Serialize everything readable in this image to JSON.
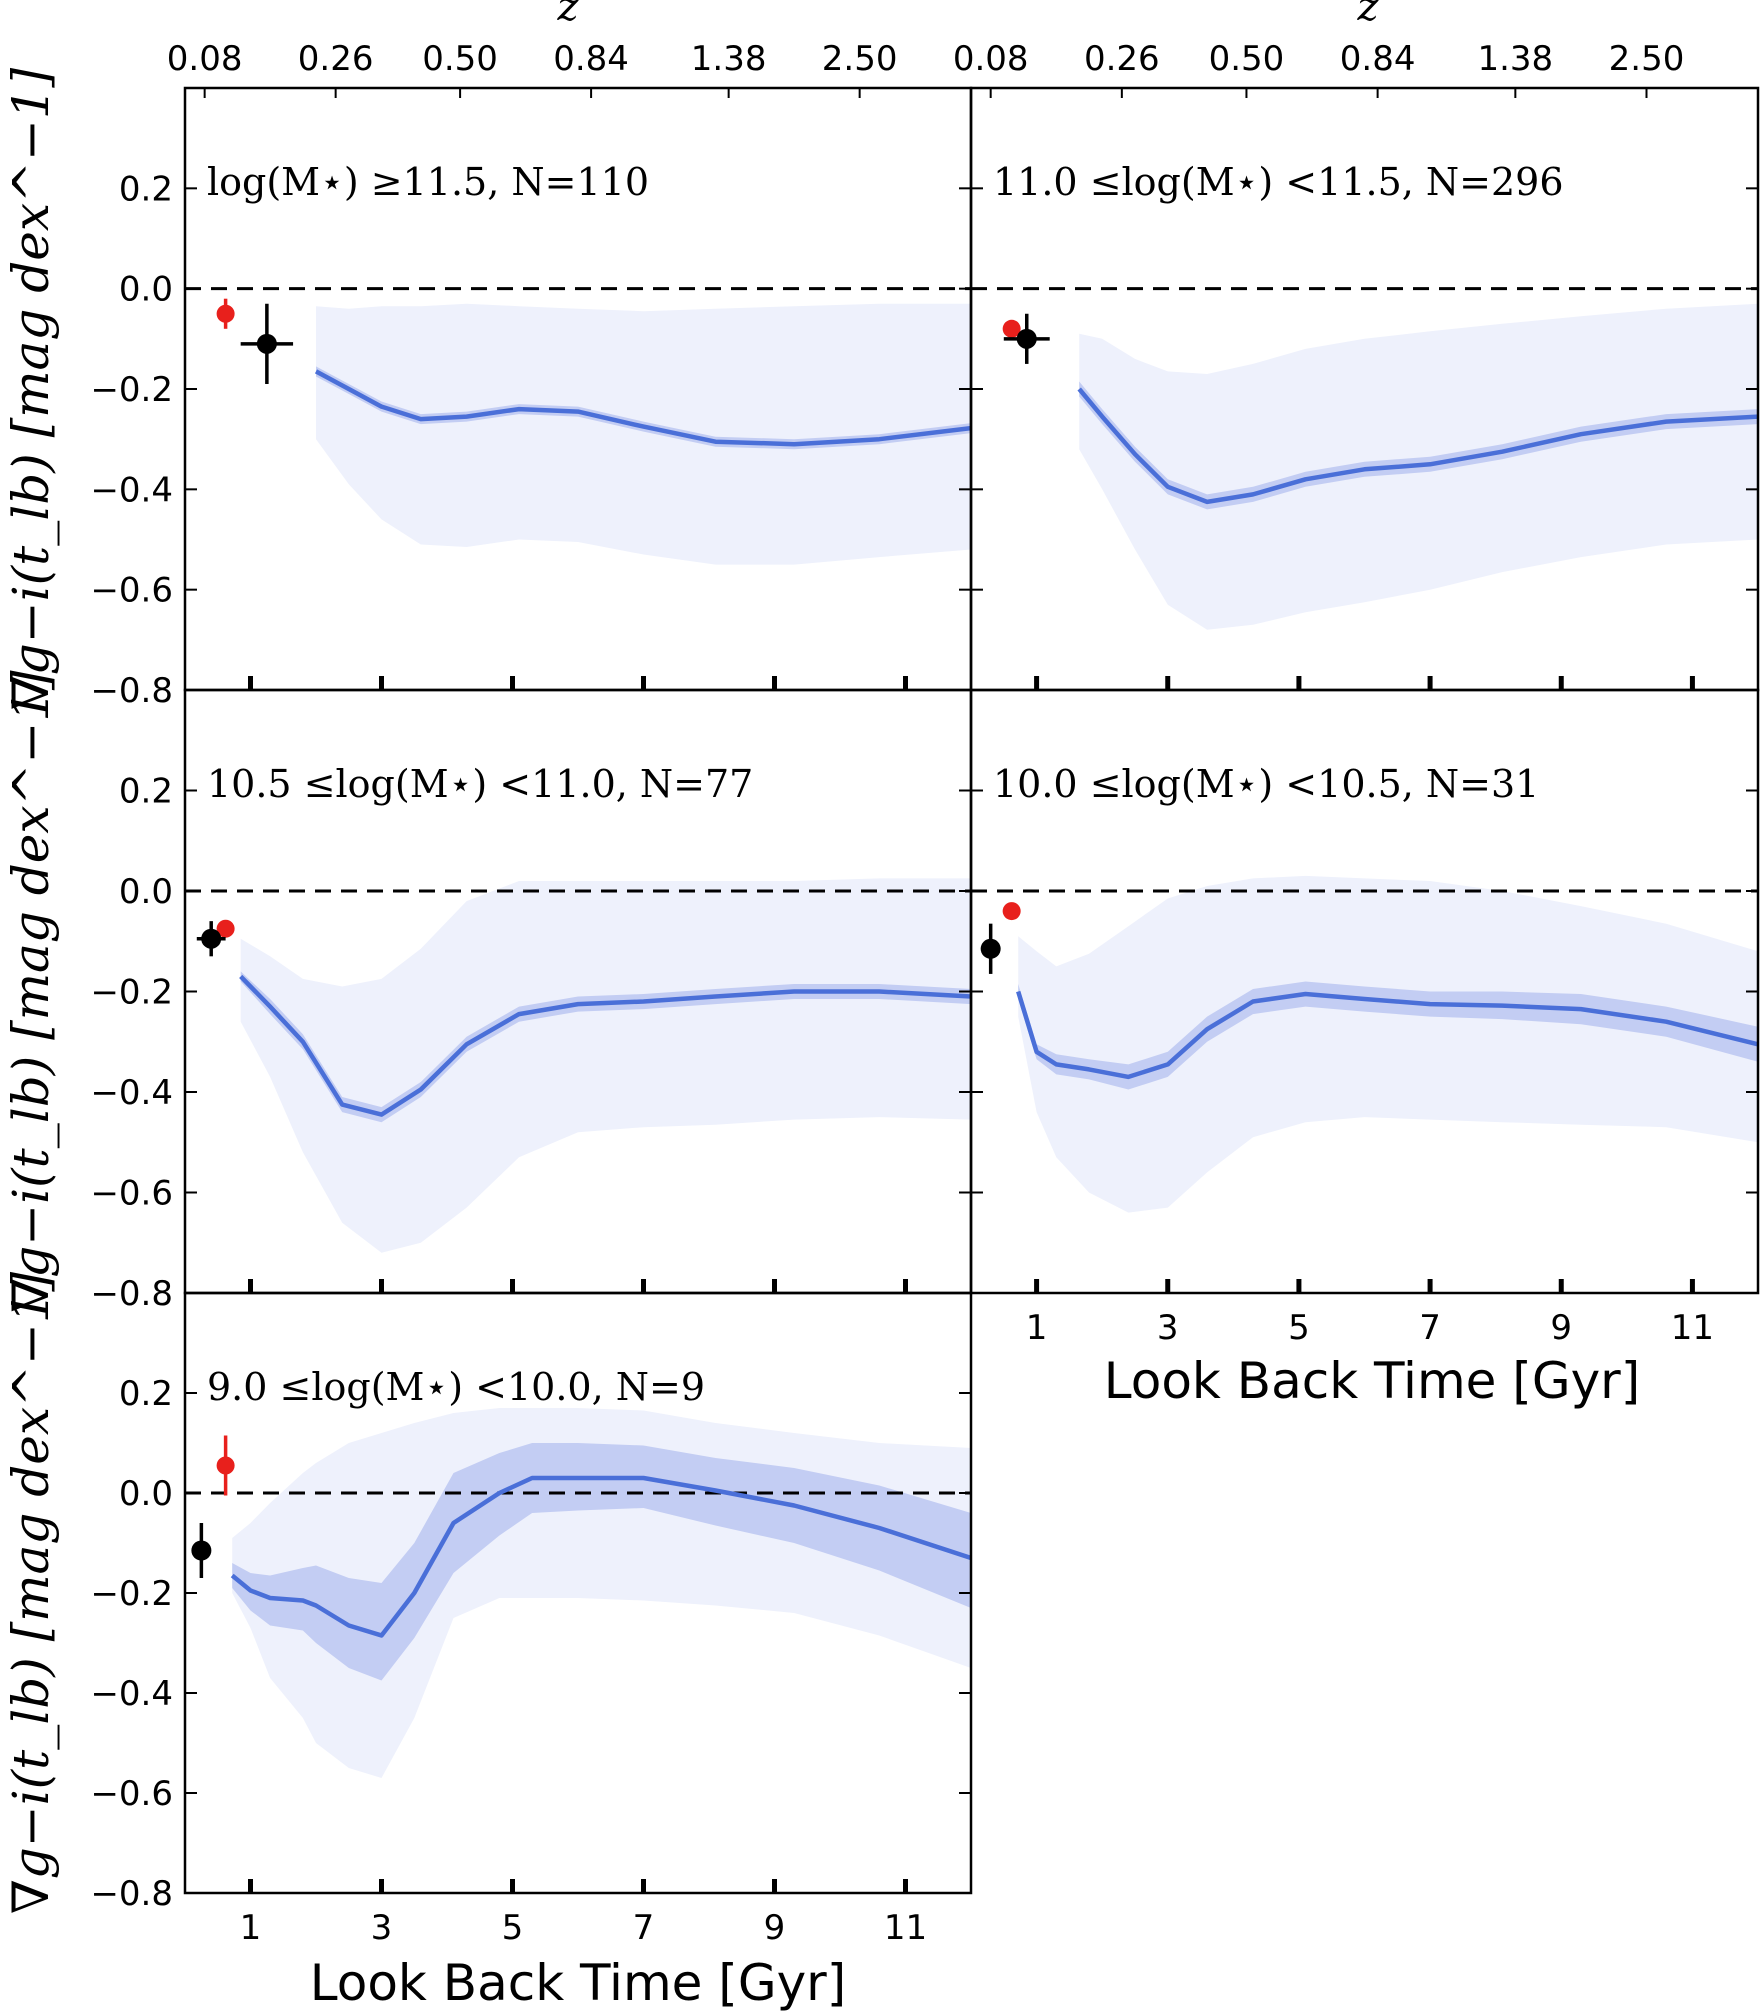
{
  "chart_data": {
    "type": "line",
    "xlabel": "Look Back Time [Gyr]",
    "ylabel": "∇g−i(t_lb) [mag dex^−1]",
    "top_axis_label": "z",
    "xlim": [
      0,
      12
    ],
    "ylim": [
      -0.8,
      0.4
    ],
    "x_ticks": [
      1,
      3,
      5,
      7,
      9,
      11
    ],
    "y_ticks": [
      0.2,
      0.0,
      -0.2,
      -0.4,
      -0.6,
      -0.8
    ],
    "y_tick_labels": [
      "0.2",
      "0.0",
      "−0.2",
      "−0.4",
      "−0.6",
      "−0.8"
    ],
    "z_tick_labels": [
      "0.08",
      "0.26",
      "0.50",
      "0.84",
      "1.38",
      "2.50"
    ],
    "reference_line": 0.0,
    "colors": {
      "line": "#4a6fd8",
      "band_inner": "#c3cdf3",
      "band_outer": "#eef1fc",
      "point_red": "#e8201c",
      "point_black": "#000000"
    },
    "panels": [
      {
        "label": "log(M⋆) ≥11.5, N=110",
        "x": [
          2.0,
          2.5,
          3.0,
          3.6,
          4.3,
          5.1,
          6.0,
          7.0,
          8.1,
          9.3,
          10.6,
          12.0
        ],
        "y": [
          -0.165,
          -0.2,
          -0.235,
          -0.26,
          -0.255,
          -0.24,
          -0.245,
          -0.275,
          -0.305,
          -0.31,
          -0.3,
          -0.278
        ],
        "inner_lo": [
          -0.175,
          -0.21,
          -0.245,
          -0.27,
          -0.265,
          -0.25,
          -0.255,
          -0.285,
          -0.315,
          -0.32,
          -0.31,
          -0.288
        ],
        "inner_hi": [
          -0.155,
          -0.19,
          -0.225,
          -0.25,
          -0.245,
          -0.23,
          -0.235,
          -0.265,
          -0.295,
          -0.3,
          -0.29,
          -0.268
        ],
        "outer_lo": [
          -0.3,
          -0.39,
          -0.46,
          -0.51,
          -0.515,
          -0.5,
          -0.505,
          -0.53,
          -0.55,
          -0.55,
          -0.535,
          -0.52
        ],
        "outer_hi": [
          -0.035,
          -0.04,
          -0.035,
          -0.035,
          -0.03,
          -0.035,
          -0.04,
          -0.045,
          -0.04,
          -0.035,
          -0.03,
          -0.03
        ],
        "red_point": {
          "x": 0.62,
          "y": -0.05,
          "yerr": 0.03
        },
        "black_point": {
          "x": 1.25,
          "y": -0.11,
          "yerr": 0.08,
          "xerr": 0.4
        }
      },
      {
        "label": "11.0 ≤log(M⋆) <11.5, N=296",
        "x": [
          1.65,
          2.0,
          2.5,
          3.0,
          3.6,
          4.3,
          5.1,
          6.0,
          7.0,
          8.1,
          9.3,
          10.6,
          12.0
        ],
        "y": [
          -0.2,
          -0.255,
          -0.33,
          -0.395,
          -0.425,
          -0.41,
          -0.38,
          -0.36,
          -0.35,
          -0.325,
          -0.29,
          -0.265,
          -0.255
        ],
        "inner_lo": [
          -0.215,
          -0.27,
          -0.345,
          -0.41,
          -0.44,
          -0.425,
          -0.395,
          -0.375,
          -0.365,
          -0.34,
          -0.305,
          -0.28,
          -0.27
        ],
        "inner_hi": [
          -0.185,
          -0.24,
          -0.315,
          -0.38,
          -0.41,
          -0.395,
          -0.365,
          -0.345,
          -0.335,
          -0.31,
          -0.275,
          -0.25,
          -0.24
        ],
        "outer_lo": [
          -0.32,
          -0.4,
          -0.52,
          -0.63,
          -0.68,
          -0.67,
          -0.645,
          -0.625,
          -0.6,
          -0.565,
          -0.535,
          -0.51,
          -0.5
        ],
        "outer_hi": [
          -0.09,
          -0.1,
          -0.14,
          -0.165,
          -0.17,
          -0.15,
          -0.12,
          -0.1,
          -0.085,
          -0.07,
          -0.055,
          -0.04,
          -0.03
        ],
        "red_point": {
          "x": 0.62,
          "y": -0.08,
          "yerr": 0.0
        },
        "black_point": {
          "x": 0.85,
          "y": -0.1,
          "yerr": 0.05,
          "xerr": 0.35
        }
      },
      {
        "label": "10.5 ≤log(M⋆) <11.0, N=77",
        "x": [
          0.85,
          1.3,
          1.8,
          2.4,
          3.0,
          3.6,
          4.3,
          5.1,
          6.0,
          7.0,
          8.1,
          9.3,
          10.6,
          12.0
        ],
        "y": [
          -0.17,
          -0.23,
          -0.3,
          -0.425,
          -0.445,
          -0.395,
          -0.305,
          -0.245,
          -0.225,
          -0.22,
          -0.21,
          -0.2,
          -0.2,
          -0.21
        ],
        "inner_lo": [
          -0.18,
          -0.245,
          -0.315,
          -0.44,
          -0.46,
          -0.41,
          -0.32,
          -0.26,
          -0.24,
          -0.235,
          -0.225,
          -0.215,
          -0.215,
          -0.225
        ],
        "inner_hi": [
          -0.16,
          -0.215,
          -0.285,
          -0.41,
          -0.43,
          -0.38,
          -0.29,
          -0.23,
          -0.21,
          -0.205,
          -0.195,
          -0.185,
          -0.185,
          -0.195
        ],
        "outer_lo": [
          -0.26,
          -0.37,
          -0.52,
          -0.66,
          -0.72,
          -0.7,
          -0.63,
          -0.53,
          -0.48,
          -0.47,
          -0.465,
          -0.455,
          -0.45,
          -0.455
        ],
        "outer_hi": [
          -0.095,
          -0.13,
          -0.175,
          -0.19,
          -0.175,
          -0.115,
          -0.02,
          0.02,
          0.02,
          0.02,
          0.02,
          0.02,
          0.025,
          0.025
        ],
        "red_point": {
          "x": 0.62,
          "y": -0.075,
          "yerr": 0.0
        },
        "black_point": {
          "x": 0.4,
          "y": -0.095,
          "yerr": 0.035,
          "xerr": 0.22
        }
      },
      {
        "label": "10.0 ≤log(M⋆) <10.5, N=31",
        "x": [
          0.72,
          1.0,
          1.3,
          1.8,
          2.4,
          3.0,
          3.6,
          4.3,
          5.1,
          6.0,
          7.0,
          8.1,
          9.3,
          10.6,
          12.0
        ],
        "y": [
          -0.2,
          -0.32,
          -0.345,
          -0.355,
          -0.37,
          -0.345,
          -0.275,
          -0.22,
          -0.205,
          -0.215,
          -0.225,
          -0.228,
          -0.235,
          -0.26,
          -0.305
        ],
        "inner_lo": [
          -0.215,
          -0.335,
          -0.365,
          -0.375,
          -0.395,
          -0.37,
          -0.3,
          -0.245,
          -0.23,
          -0.24,
          -0.25,
          -0.255,
          -0.265,
          -0.29,
          -0.34
        ],
        "inner_hi": [
          -0.185,
          -0.305,
          -0.325,
          -0.335,
          -0.345,
          -0.32,
          -0.25,
          -0.195,
          -0.18,
          -0.19,
          -0.2,
          -0.2,
          -0.205,
          -0.23,
          -0.27
        ],
        "outer_lo": [
          -0.25,
          -0.44,
          -0.53,
          -0.6,
          -0.64,
          -0.63,
          -0.56,
          -0.49,
          -0.46,
          -0.45,
          -0.455,
          -0.46,
          -0.465,
          -0.47,
          -0.5
        ],
        "outer_hi": [
          -0.09,
          -0.12,
          -0.15,
          -0.125,
          -0.07,
          -0.015,
          0.01,
          0.025,
          0.03,
          0.025,
          0.02,
          0.0,
          -0.03,
          -0.065,
          -0.12
        ],
        "red_point": {
          "x": 0.62,
          "y": -0.04,
          "yerr": 0.0
        },
        "black_point": {
          "x": 0.3,
          "y": -0.115,
          "yerr": 0.05,
          "xerr": 0.0
        }
      },
      {
        "label": "9.0 ≤log(M⋆) <10.0, N=9",
        "x": [
          0.72,
          1.0,
          1.3,
          1.8,
          2.0,
          2.5,
          3.0,
          3.5,
          4.1,
          4.8,
          5.3,
          6.0,
          7.0,
          8.1,
          9.3,
          10.6,
          12.0
        ],
        "y": [
          -0.165,
          -0.195,
          -0.21,
          -0.215,
          -0.225,
          -0.265,
          -0.285,
          -0.2,
          -0.06,
          0.0,
          0.03,
          0.03,
          0.03,
          0.005,
          -0.025,
          -0.07,
          -0.13
        ],
        "inner_lo": [
          -0.19,
          -0.235,
          -0.265,
          -0.275,
          -0.3,
          -0.35,
          -0.375,
          -0.29,
          -0.16,
          -0.085,
          -0.04,
          -0.035,
          -0.03,
          -0.065,
          -0.1,
          -0.155,
          -0.23
        ],
        "inner_hi": [
          -0.14,
          -0.16,
          -0.165,
          -0.15,
          -0.145,
          -0.17,
          -0.18,
          -0.1,
          0.04,
          0.08,
          0.1,
          0.1,
          0.095,
          0.07,
          0.05,
          0.015,
          -0.04
        ],
        "outer_lo": [
          -0.2,
          -0.27,
          -0.37,
          -0.45,
          -0.5,
          -0.55,
          -0.57,
          -0.45,
          -0.25,
          -0.21,
          -0.21,
          -0.21,
          -0.215,
          -0.225,
          -0.24,
          -0.285,
          -0.35
        ],
        "outer_hi": [
          -0.09,
          -0.06,
          -0.02,
          0.04,
          0.06,
          0.1,
          0.12,
          0.14,
          0.16,
          0.17,
          0.17,
          0.17,
          0.165,
          0.14,
          0.12,
          0.1,
          0.09
        ],
        "red_point": {
          "x": 0.62,
          "y": 0.055,
          "yerr": 0.06
        },
        "black_point": {
          "x": 0.25,
          "y": -0.115,
          "yerr": 0.055,
          "xerr": 0.0
        }
      }
    ]
  }
}
